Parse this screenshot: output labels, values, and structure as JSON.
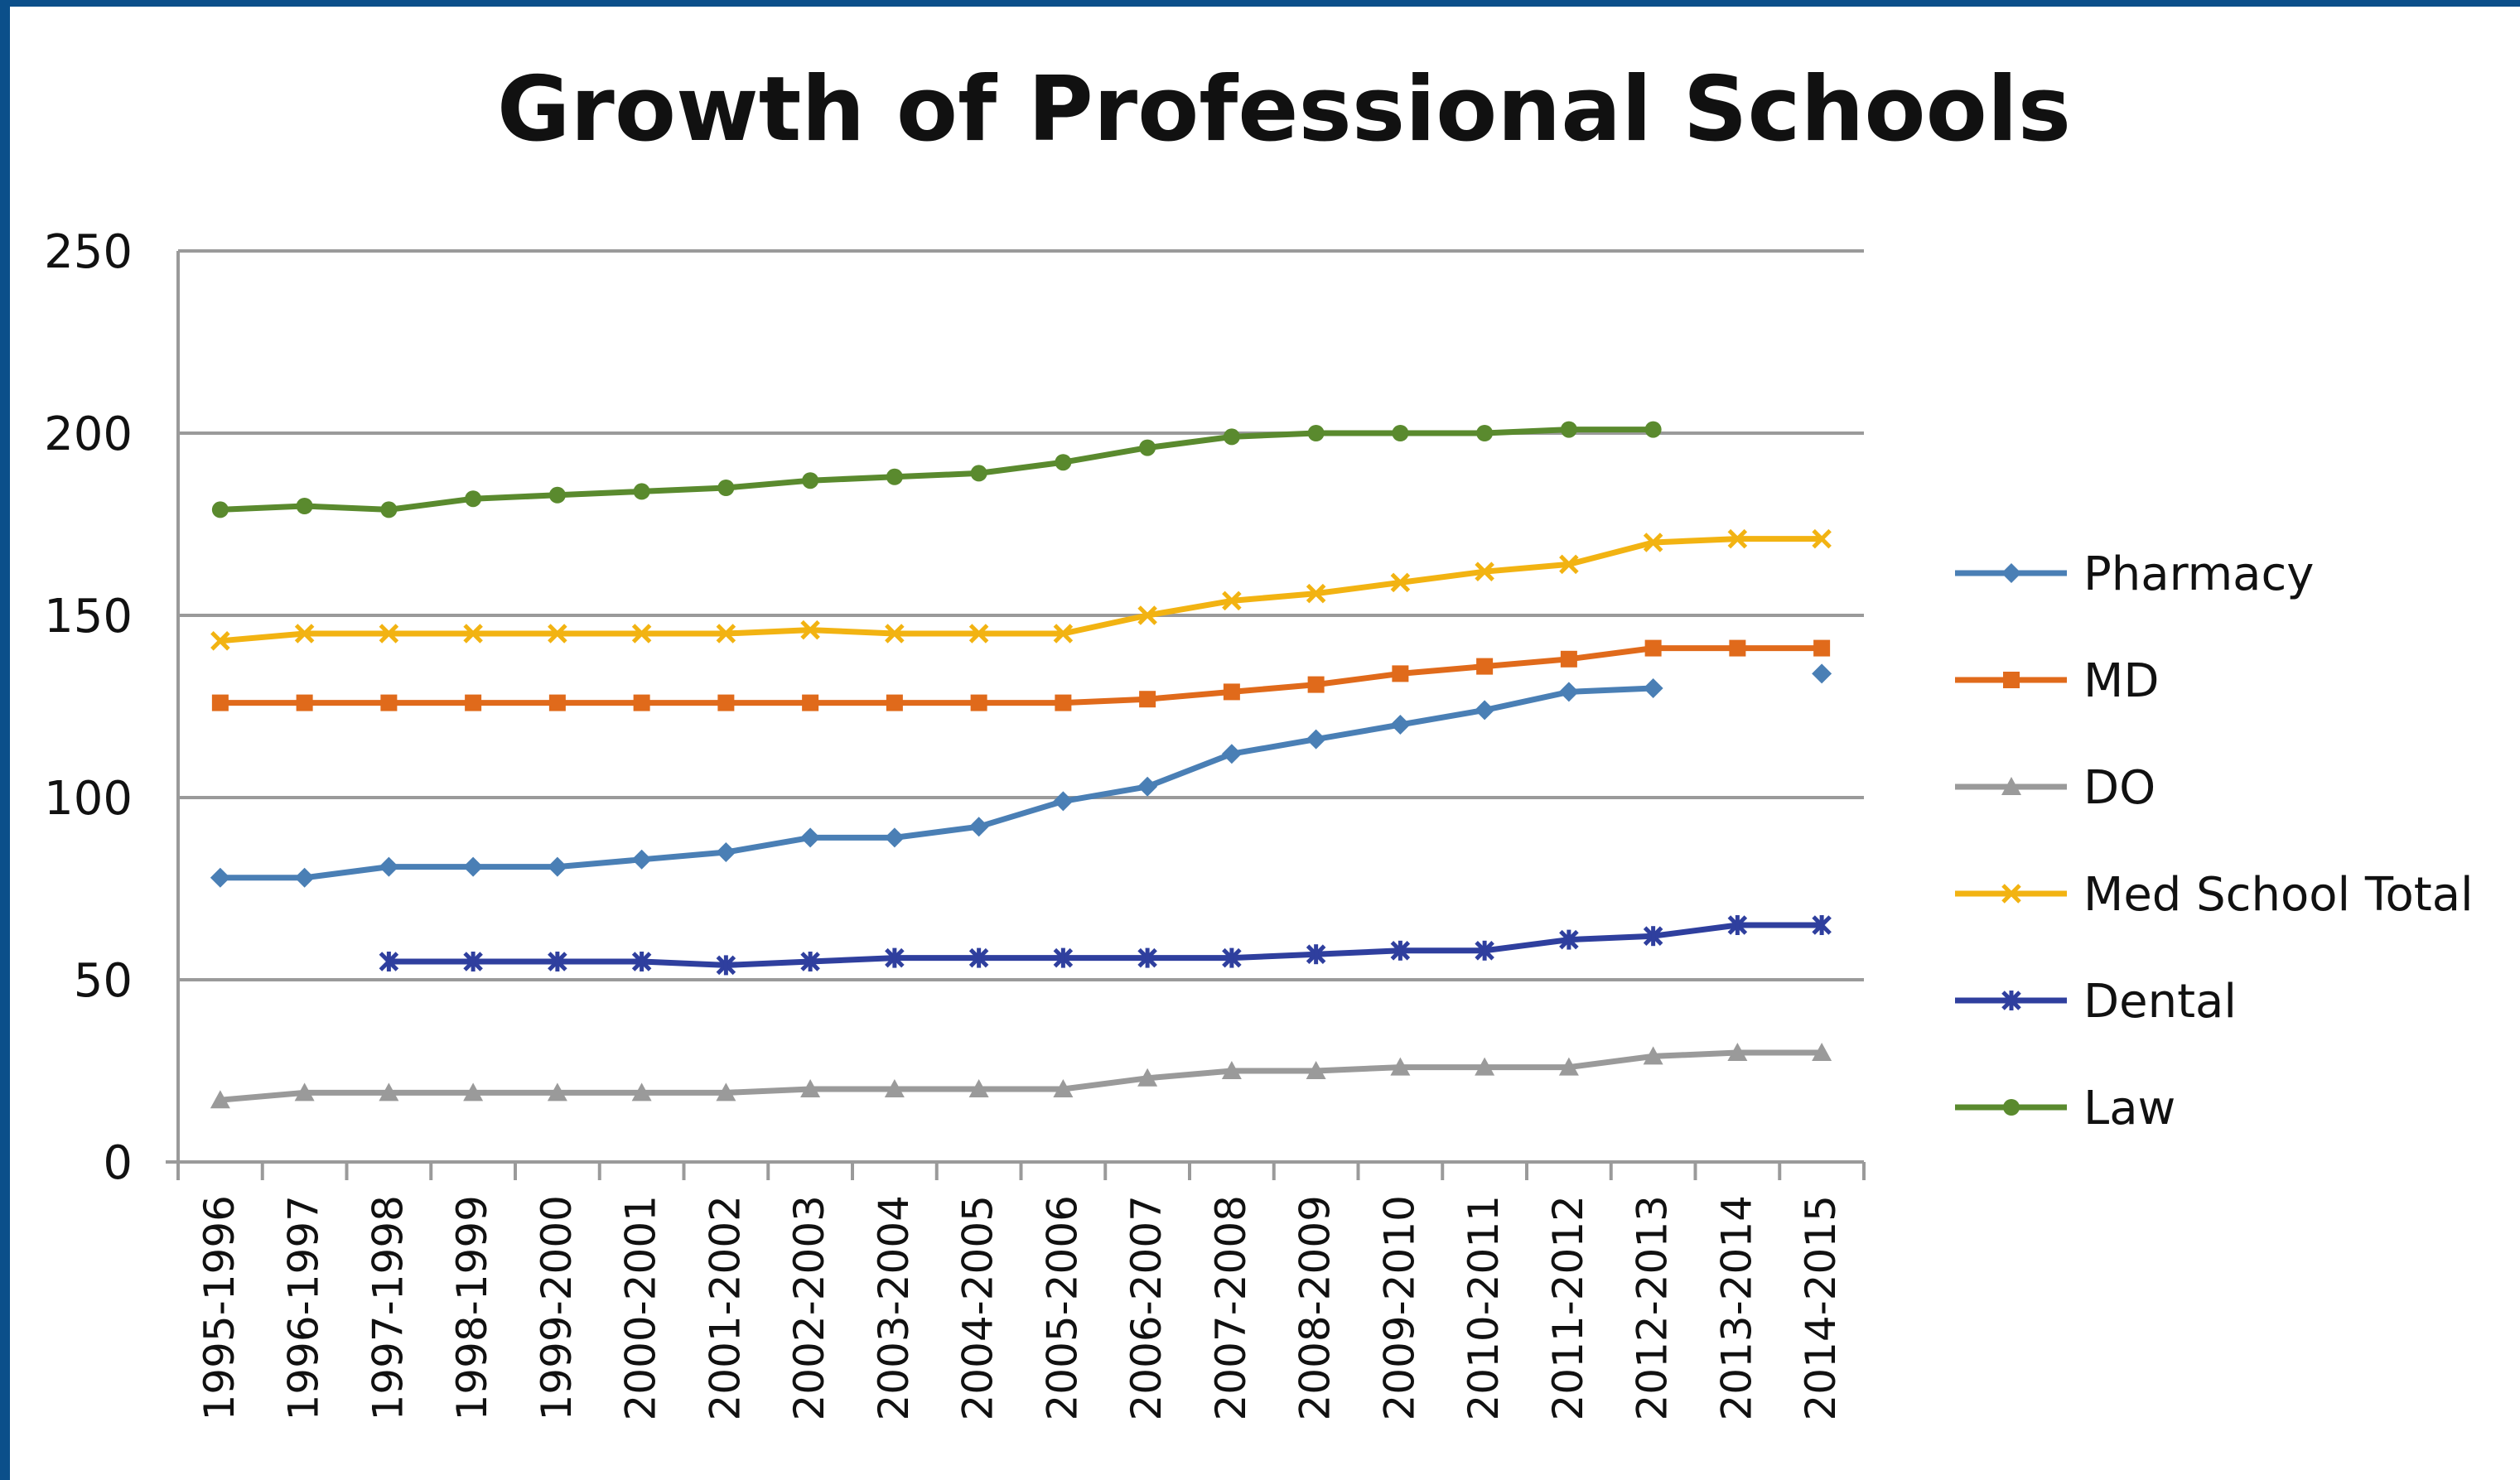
{
  "chart_data": {
    "type": "line",
    "title": "Growth of Professional Schools",
    "xlabel": "",
    "ylabel": "",
    "ylim": [
      0,
      250
    ],
    "yticks": [
      0,
      50,
      100,
      150,
      200,
      250
    ],
    "grid": true,
    "legend_position": "right",
    "categories": [
      "1995-1996",
      "1996-1997",
      "1997-1998",
      "1998-1999",
      "1999-2000",
      "2000-2001",
      "2001-2002",
      "2002-2003",
      "2003-2004",
      "2004-2005",
      "2005-2006",
      "2006-2007",
      "2007-2008",
      "2008-2009",
      "2009-2010",
      "2010-2011",
      "2011-2012",
      "2012-2013",
      "2013-2014",
      "2014-2015"
    ],
    "series": [
      {
        "name": "Pharmacy",
        "color": "#4a7fb5",
        "marker": "diamond",
        "values": [
          78,
          78,
          81,
          81,
          81,
          83,
          85,
          89,
          89,
          92,
          99,
          103,
          112,
          116,
          120,
          124,
          129,
          130,
          null,
          134
        ]
      },
      {
        "name": "MD",
        "color": "#e06a1b",
        "marker": "square",
        "values": [
          126,
          126,
          126,
          126,
          126,
          126,
          126,
          126,
          126,
          126,
          126,
          127,
          129,
          131,
          134,
          136,
          138,
          141,
          141,
          141
        ]
      },
      {
        "name": "DO",
        "color": "#9a9a9a",
        "marker": "triangle",
        "values": [
          17,
          19,
          19,
          19,
          19,
          19,
          19,
          20,
          20,
          20,
          20,
          23,
          25,
          25,
          26,
          26,
          26,
          29,
          30,
          30
        ]
      },
      {
        "name": "Med School Total",
        "color": "#f2b312",
        "marker": "x",
        "values": [
          143,
          145,
          145,
          145,
          145,
          145,
          145,
          146,
          145,
          145,
          145,
          150,
          154,
          156,
          159,
          162,
          164,
          170,
          171,
          171
        ]
      },
      {
        "name": "Dental",
        "color": "#2f3f9e",
        "marker": "star",
        "values": [
          null,
          null,
          55,
          55,
          55,
          55,
          54,
          55,
          56,
          56,
          56,
          56,
          56,
          57,
          58,
          58,
          61,
          62,
          65,
          65
        ]
      },
      {
        "name": "Law",
        "color": "#5a8a2e",
        "marker": "circle",
        "values": [
          179,
          180,
          179,
          182,
          183,
          184,
          185,
          187,
          188,
          189,
          192,
          196,
          199,
          200,
          200,
          200,
          201,
          201,
          null,
          null
        ]
      }
    ]
  }
}
